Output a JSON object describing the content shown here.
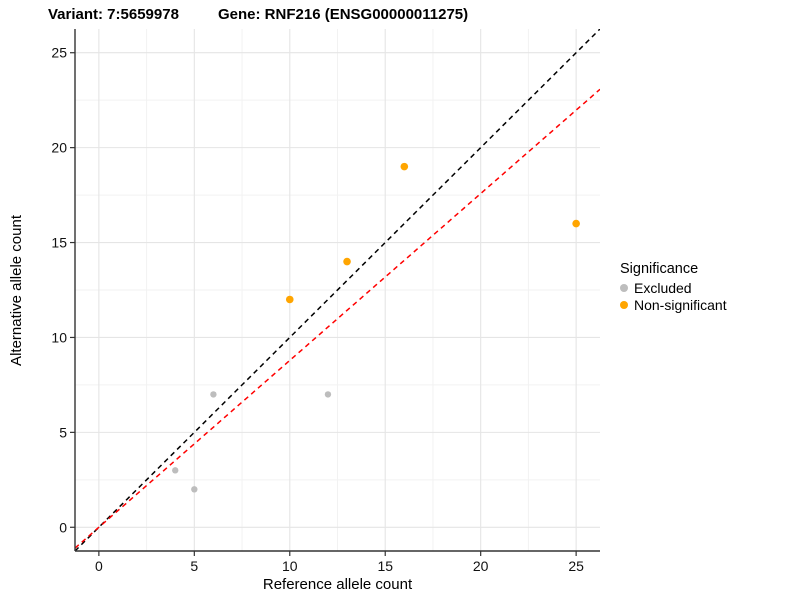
{
  "chart_data": {
    "type": "scatter",
    "title_left": "Variant: 7:5659978",
    "title_right": "Gene: RNF216 (ENSG00000011275)",
    "xlabel": "Reference allele count",
    "ylabel": "Alternative allele count",
    "xlim": [
      -1.25,
      26.25
    ],
    "ylim": [
      -1.25,
      26.25
    ],
    "x_ticks": [
      0,
      5,
      10,
      15,
      20,
      25
    ],
    "y_ticks": [
      0,
      5,
      10,
      15,
      20,
      25
    ],
    "x_minor_ticks": [
      2.5,
      7.5,
      12.5,
      17.5,
      22.5
    ],
    "y_minor_ticks": [
      2.5,
      7.5,
      12.5,
      17.5,
      22.5
    ],
    "grid": "major+minor",
    "legend": {
      "title": "Significance",
      "position": "right",
      "items": [
        {
          "label": "Excluded",
          "color": "#bdbdbd"
        },
        {
          "label": "Non-significant",
          "color": "#ffa500"
        }
      ]
    },
    "series": [
      {
        "name": "Excluded",
        "color": "#bdbdbd",
        "radius": 3.2,
        "points": [
          [
            4,
            3
          ],
          [
            5,
            2
          ],
          [
            6,
            7
          ],
          [
            12,
            7
          ]
        ]
      },
      {
        "name": "Non-significant",
        "color": "#ffa500",
        "radius": 3.8,
        "points": [
          [
            10,
            12
          ],
          [
            13,
            14
          ],
          [
            16,
            19
          ],
          [
            25,
            16
          ]
        ]
      }
    ],
    "lines": [
      {
        "name": "identity",
        "slope": 1,
        "intercept": 0,
        "color": "#000000",
        "style": "dashed"
      },
      {
        "name": "expected-ratio",
        "slope": 0.879,
        "intercept": 0,
        "color": "#ff0000",
        "style": "dashed"
      }
    ],
    "colors": {
      "grid_major": "#e5e5e5",
      "grid_minor": "#f2f2f2",
      "axis_line": "#333333",
      "tick_text": "#111111"
    }
  }
}
